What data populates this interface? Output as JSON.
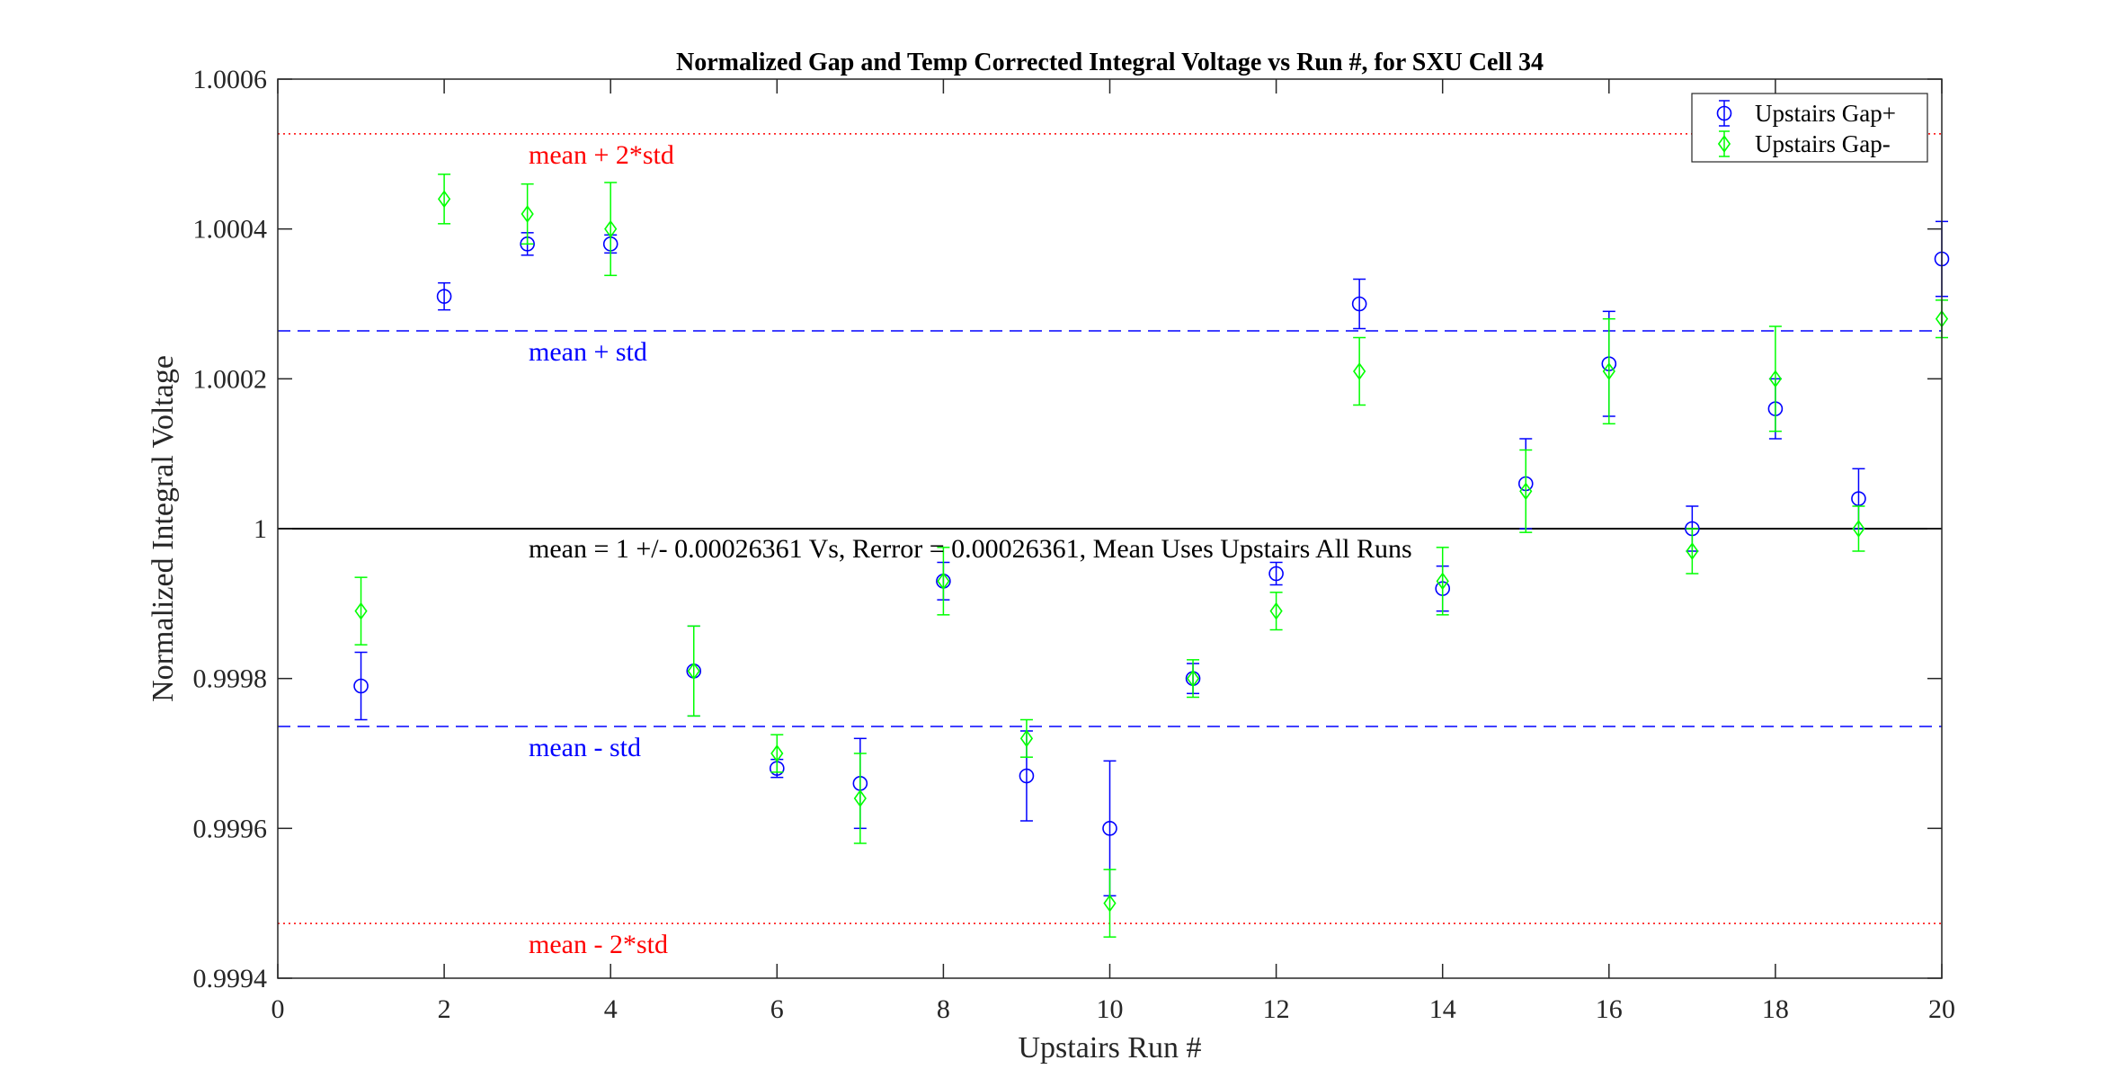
{
  "chart_data": {
    "type": "scatter",
    "title": "Normalized Gap and Temp Corrected Integral Voltage vs Run #, for SXU Cell 34",
    "xlabel": "Upstairs Run #",
    "ylabel": "Normalized Integral Voltage",
    "xlim": [
      0,
      20
    ],
    "ylim": [
      0.9994,
      1.0006
    ],
    "xticks": [
      "0",
      "2",
      "4",
      "6",
      "8",
      "10",
      "12",
      "14",
      "16",
      "18",
      "20"
    ],
    "yticks": [
      "0.9994",
      "0.9996",
      "0.9998",
      "1",
      "1.0002",
      "1.0004",
      "1.0006"
    ],
    "grid": false,
    "legend_position": "top-right",
    "series": [
      {
        "name": "Upstairs Gap+",
        "marker": "circle",
        "color": "#0000ff",
        "x": [
          1,
          2,
          3,
          4,
          5,
          6,
          7,
          8,
          9,
          10,
          11,
          12,
          13,
          14,
          15,
          16,
          17,
          18,
          19,
          20
        ],
        "y": [
          0.99979,
          1.00031,
          1.00038,
          1.00038,
          0.99981,
          0.99968,
          0.99966,
          0.99993,
          0.99967,
          0.9996,
          0.9998,
          0.99994,
          1.0003,
          0.99992,
          1.00006,
          1.00022,
          1.0,
          1.00016,
          1.00004,
          1.00036
        ],
        "err": [
          4.5e-05,
          1.8e-05,
          1.5e-05,
          1.2e-05,
          6e-05,
          1.2e-05,
          6e-05,
          2.5e-05,
          6e-05,
          9e-05,
          2e-05,
          1.5e-05,
          3.3e-05,
          3e-05,
          6e-05,
          7e-05,
          3e-05,
          4e-05,
          4e-05,
          5e-05
        ]
      },
      {
        "name": "Upstairs Gap-",
        "marker": "diamond",
        "color": "#00ff00",
        "x": [
          1,
          2,
          3,
          4,
          5,
          6,
          7,
          8,
          9,
          10,
          11,
          12,
          13,
          14,
          15,
          16,
          17,
          18,
          19,
          20
        ],
        "y": [
          0.99989,
          1.00044,
          1.00042,
          1.0004,
          0.99981,
          0.9997,
          0.99964,
          0.99993,
          0.99972,
          0.9995,
          0.9998,
          0.99989,
          1.00021,
          0.99993,
          1.00005,
          1.00021,
          0.99997,
          1.0002,
          1.0,
          1.00028
        ],
        "err": [
          4.5e-05,
          3.3e-05,
          4e-05,
          6.2e-05,
          6e-05,
          2.5e-05,
          6e-05,
          4.5e-05,
          2.5e-05,
          4.5e-05,
          2.5e-05,
          2.5e-05,
          4.5e-05,
          4.5e-05,
          5.5e-05,
          7e-05,
          3e-05,
          7e-05,
          3e-05,
          2.5e-05
        ]
      }
    ],
    "reference_lines": [
      {
        "y": 1.000527,
        "label": "mean + 2*std",
        "color": "#ff0000",
        "style": "dotted"
      },
      {
        "y": 1.000264,
        "label": "mean + std",
        "color": "#0000ff",
        "style": "dashed"
      },
      {
        "y": 1.0,
        "label": "",
        "color": "#000000",
        "style": "solid"
      },
      {
        "y": 0.999736,
        "label": "mean - std",
        "color": "#0000ff",
        "style": "dashed"
      },
      {
        "y": 0.999473,
        "label": "mean - 2*std",
        "color": "#ff0000",
        "style": "dotted"
      }
    ],
    "annotation": "mean = 1 +/- 0.00026361 Vs, Rerror = 0.00026361, Mean Uses Upstairs All Runs"
  }
}
